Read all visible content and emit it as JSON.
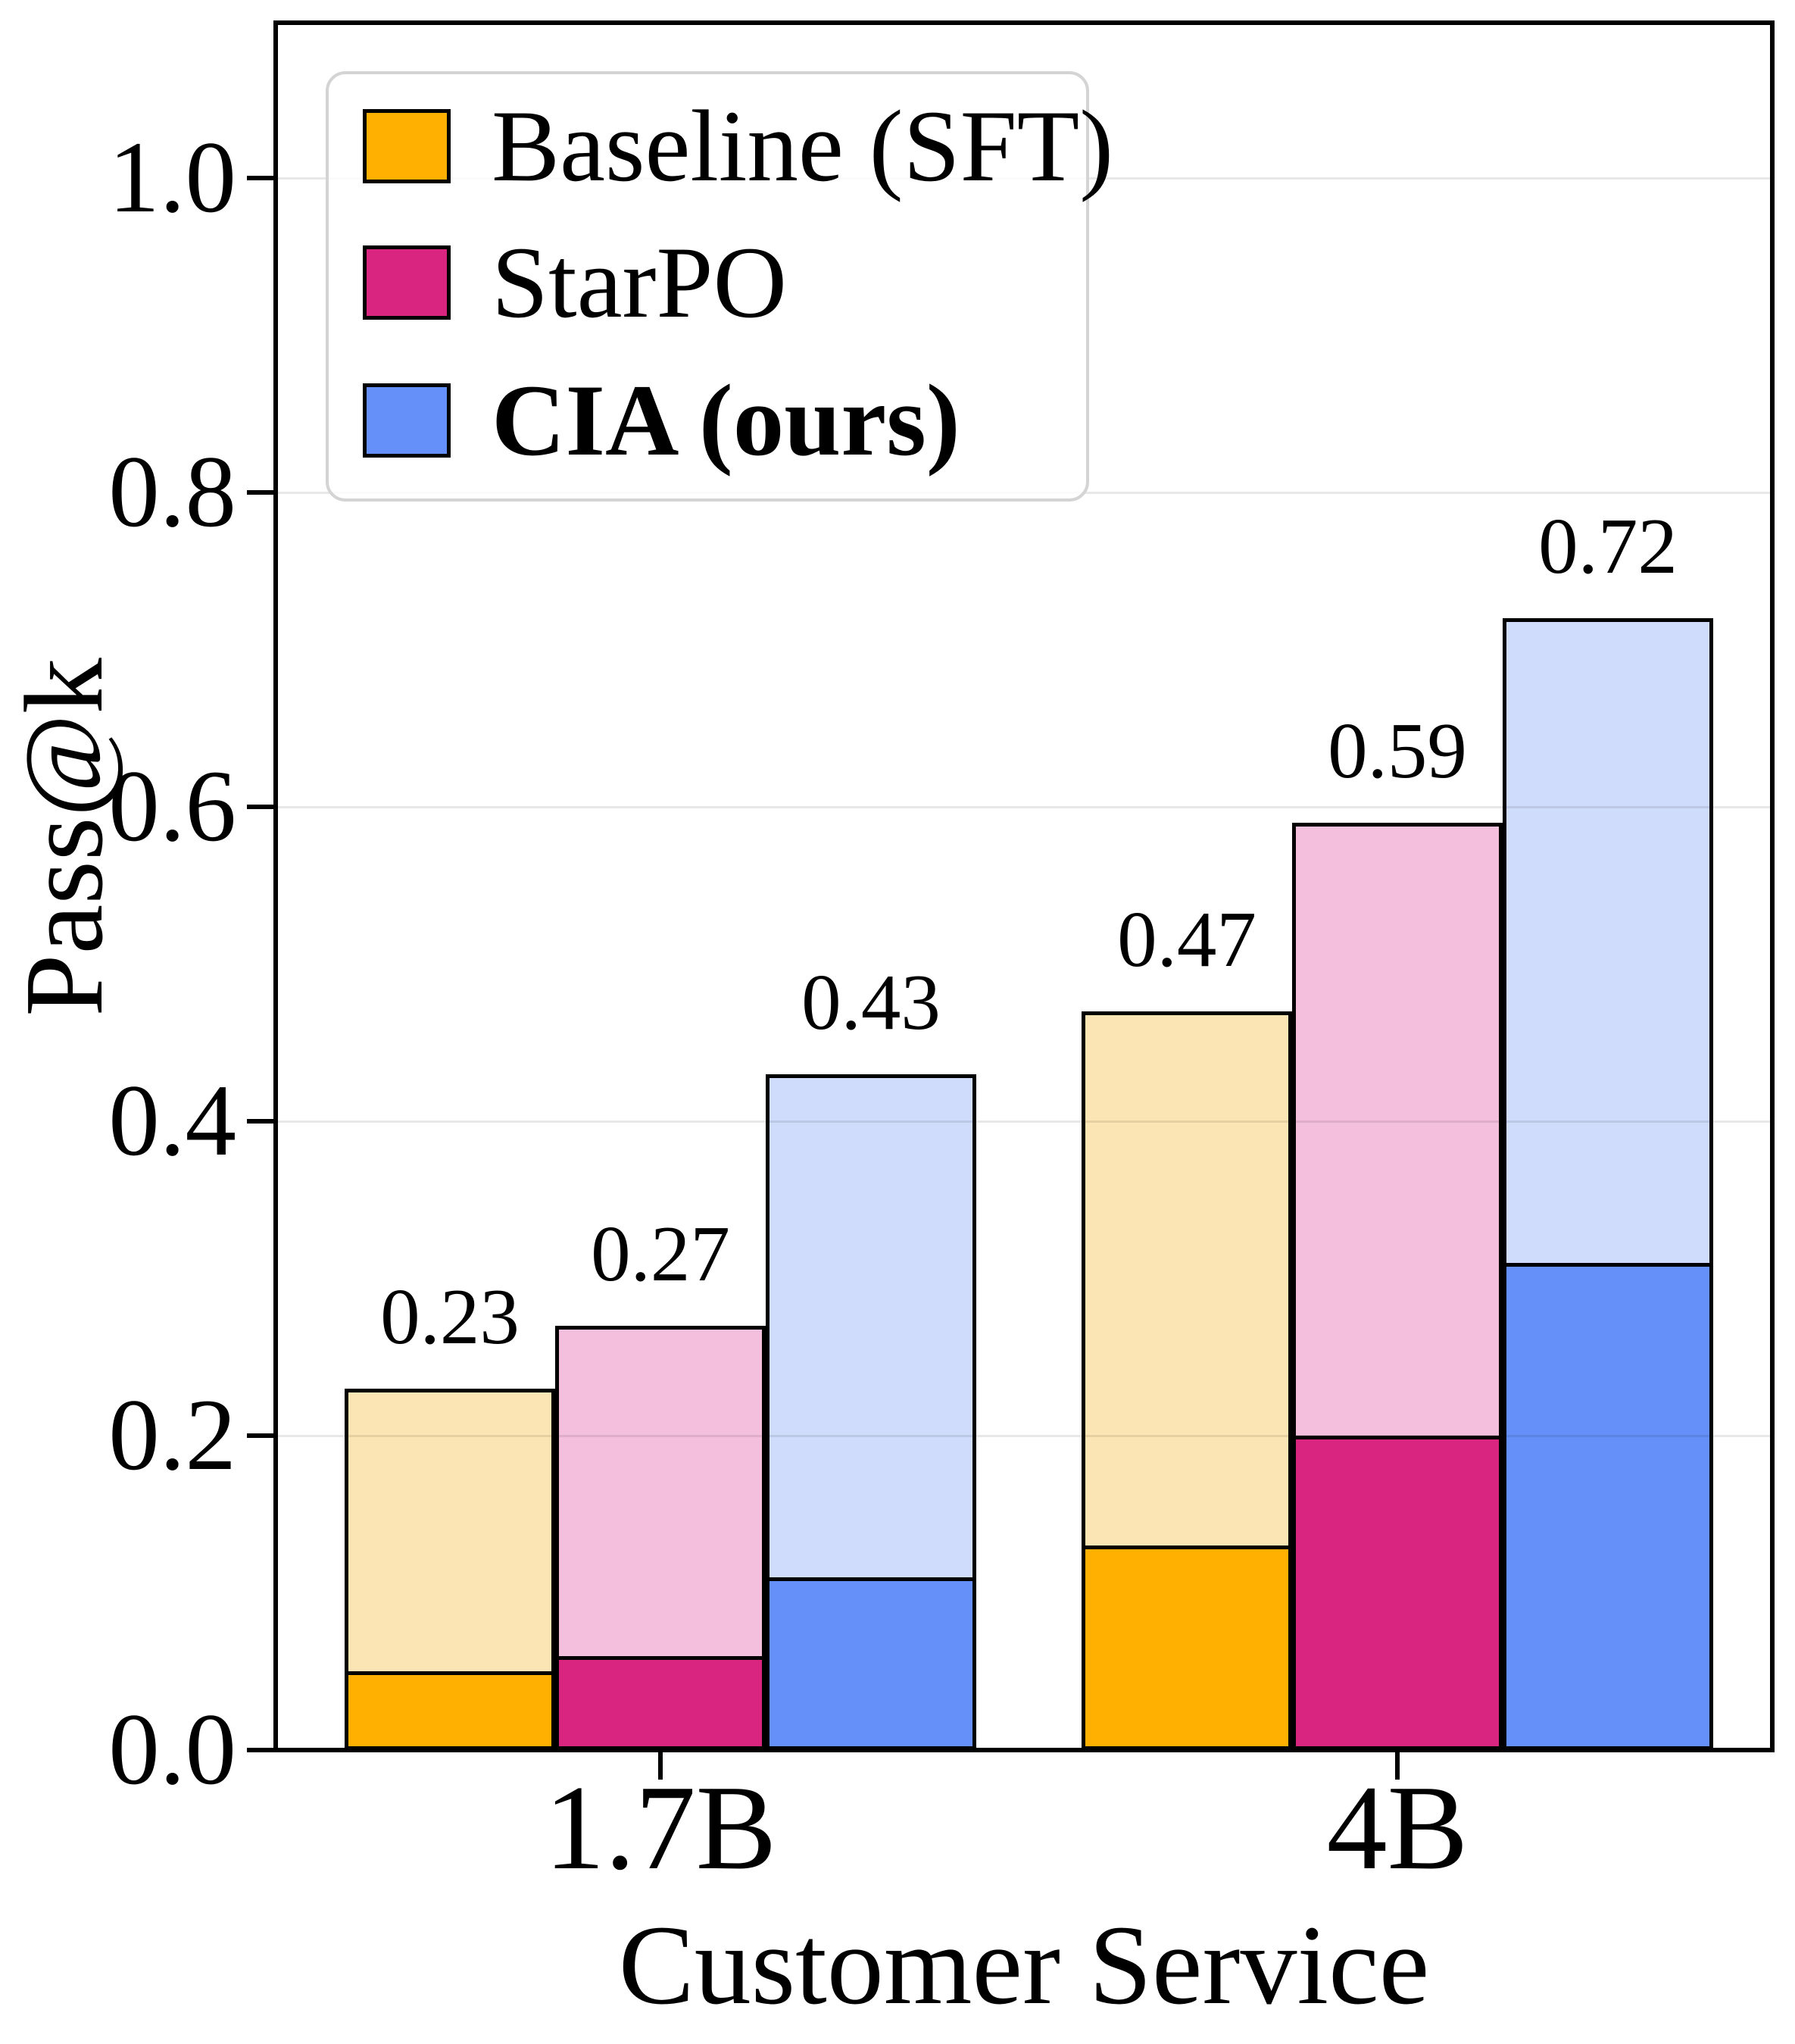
{
  "figure": {
    "background": "#FFFFFF"
  },
  "axes": {
    "ylabel": "Pass@k",
    "xlabel": "Customer Service",
    "ytick_labels": [
      "0.0",
      "0.2",
      "0.4",
      "0.6",
      "0.8",
      "1.0"
    ],
    "ytick_values": [
      0.0,
      0.2,
      0.4,
      0.6,
      0.8,
      1.0
    ],
    "xtick_labels": [
      "1.7B",
      "4B"
    ],
    "ylim": [
      0.0,
      1.099
    ],
    "grid": "horizontal",
    "spine_color": "#000000",
    "grid_color": "rgba(0,0,0,0.09)"
  },
  "legend": {
    "position": "upper-left",
    "border_color": "#D4D4D4",
    "entries": [
      {
        "label": "Baseline (SFT)",
        "color": "#FFB000",
        "bold": false
      },
      {
        "label": "StarPO",
        "color": "#DA2580",
        "bold": false
      },
      {
        "label": "CIA (ours)",
        "color": "#6590F9",
        "bold": true
      }
    ]
  },
  "chart_data": {
    "type": "bar",
    "title": "",
    "xlabel": "Customer Service",
    "ylabel": "Pass@k",
    "categories": [
      "1.7B",
      "4B"
    ],
    "ylim": [
      0,
      1.099
    ],
    "grid": "horizontal",
    "legend_position": "upper-left",
    "series": [
      {
        "name": "Baseline (SFT)",
        "color": "#FFB000",
        "light_color": "#FCE5B4",
        "pass_at_k_totals": [
          0.23,
          0.47
        ],
        "solid_lower_values": [
          0.05,
          0.13
        ]
      },
      {
        "name": "StarPO",
        "color": "#DA2580",
        "light_color": "#F4BFDC",
        "pass_at_k_totals": [
          0.27,
          0.59
        ],
        "solid_lower_values": [
          0.06,
          0.2
        ]
      },
      {
        "name": "CIA (ours)",
        "color": "#6590F9",
        "light_color": "#CFDCFB",
        "pass_at_k_totals": [
          0.43,
          0.72
        ],
        "solid_lower_values": [
          0.11,
          0.31
        ]
      }
    ],
    "bar_value_labels": {
      "1.7B": [
        "0.23",
        "0.27",
        "0.43"
      ],
      "4B": [
        "0.47",
        "0.59",
        "0.72"
      ]
    },
    "note": "Each bar shows a translucent full bar (labeled Pass@k total) with a solid lower segment; solid segment values estimated from pixels."
  }
}
